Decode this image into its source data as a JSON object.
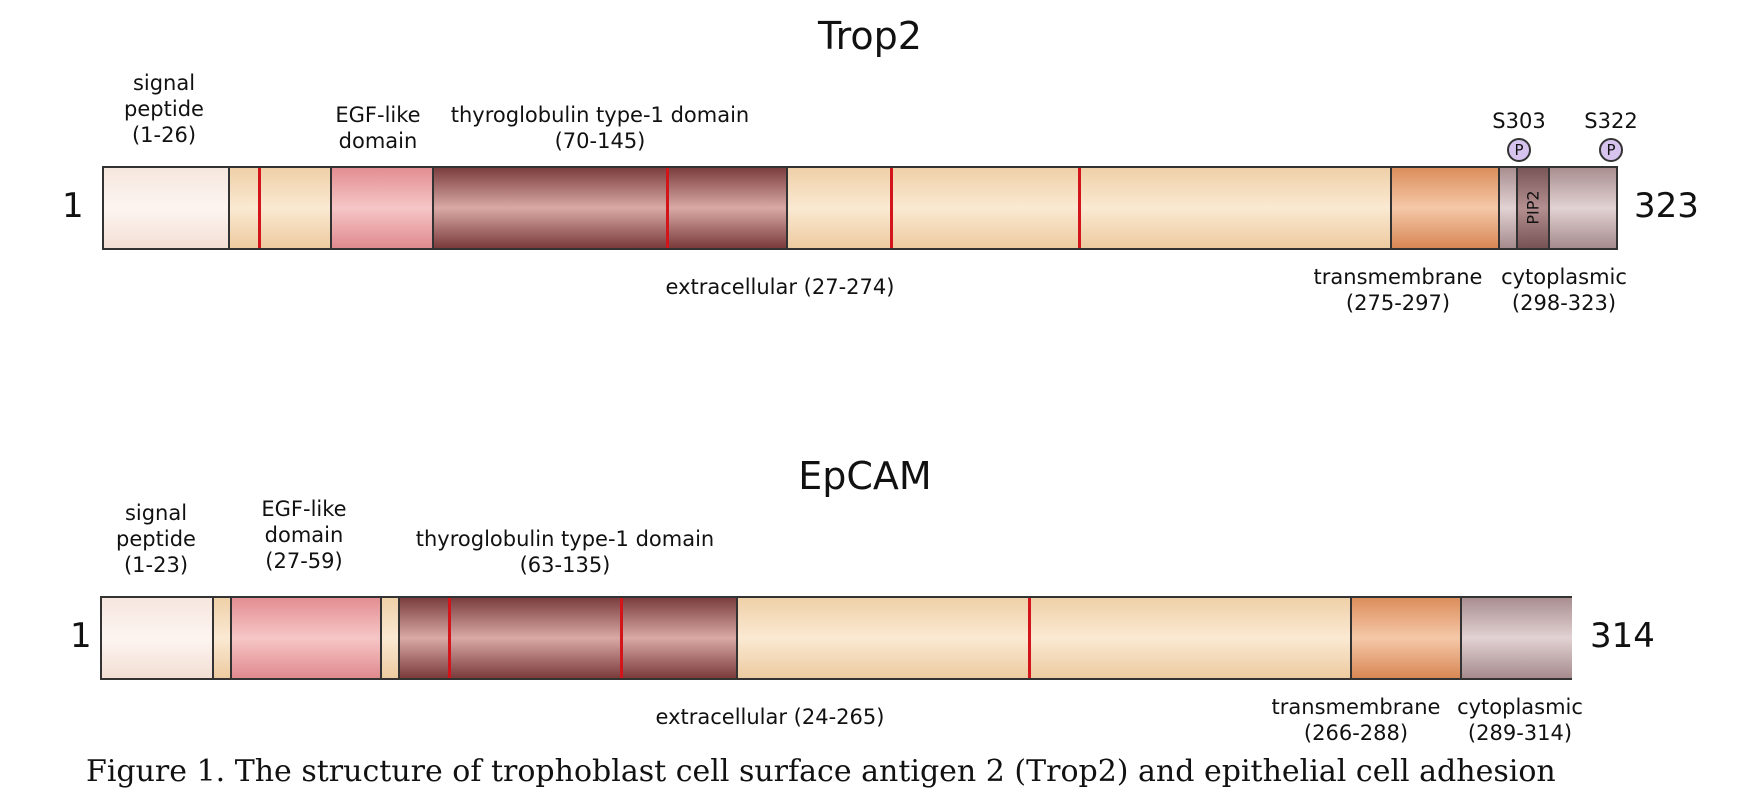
{
  "trop2": {
    "title": "Trop2",
    "start": "1",
    "end": "323",
    "signal": "signal\npeptide\n(1-26)",
    "egf": "EGF-like\ndomain",
    "thyroglobulin": "thyroglobulin type-1 domain\n(70-145)",
    "extracellular": "extracellular (27-274)",
    "transmembrane": "transmembrane\n(275-297)",
    "cytoplasmic": "cytoplasmic\n(298-323)",
    "s303": "S303",
    "s322": "S322",
    "phospho": "P",
    "pip2": "PIP2"
  },
  "epcam": {
    "title": "EpCAM",
    "start": "1",
    "end": "314",
    "signal": "signal\npeptide\n(1-23)",
    "egf": "EGF-like\ndomain\n(27-59)",
    "thyroglobulin": "thyroglobulin type-1 domain\n(63-135)",
    "extracellular": "extracellular (24-265)",
    "transmembrane": "transmembrane\n(266-288)",
    "cytoplasmic": "cytoplasmic\n(289-314)"
  },
  "caption": "Figure 1.  The structure of trophoblast cell surface antigen 2 (Trop2) and epithelial cell adhesion"
}
